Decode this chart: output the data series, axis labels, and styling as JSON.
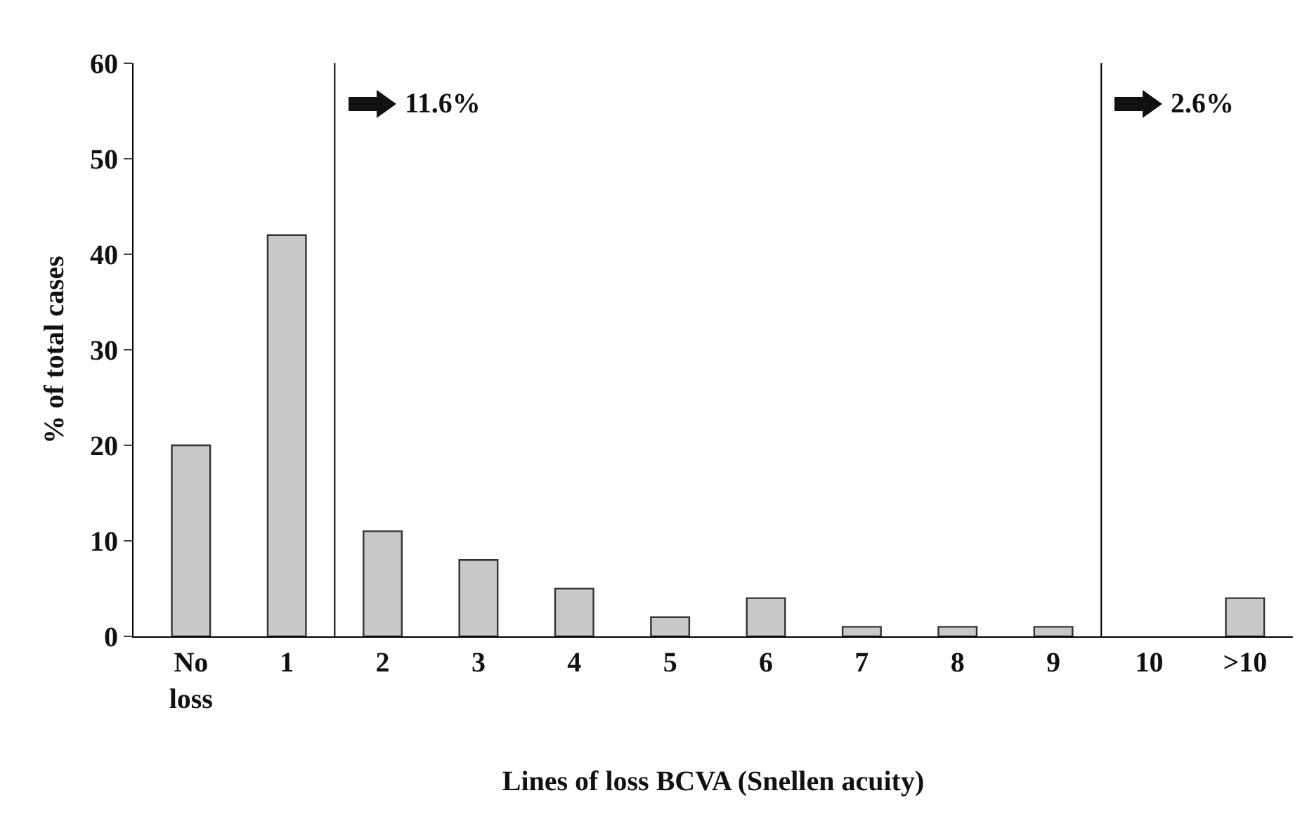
{
  "chart_data": {
    "type": "bar",
    "xlabel": "Lines of loss BCVA (Snellen acuity)",
    "ylabel": "% of total cases",
    "categories": [
      "No loss",
      "1",
      "2",
      "3",
      "4",
      "5",
      "6",
      "7",
      "8",
      "9",
      "10",
      ">10"
    ],
    "values": [
      20,
      42,
      11,
      8,
      5,
      2,
      4,
      1,
      1,
      1,
      0,
      4
    ],
    "color": "#c8c8c8",
    "ylim": [
      0,
      60
    ],
    "yticks": [
      0,
      10,
      20,
      30,
      40,
      50,
      60
    ],
    "grid": false,
    "annotations": [
      "11.6%",
      "2.6%"
    ]
  }
}
